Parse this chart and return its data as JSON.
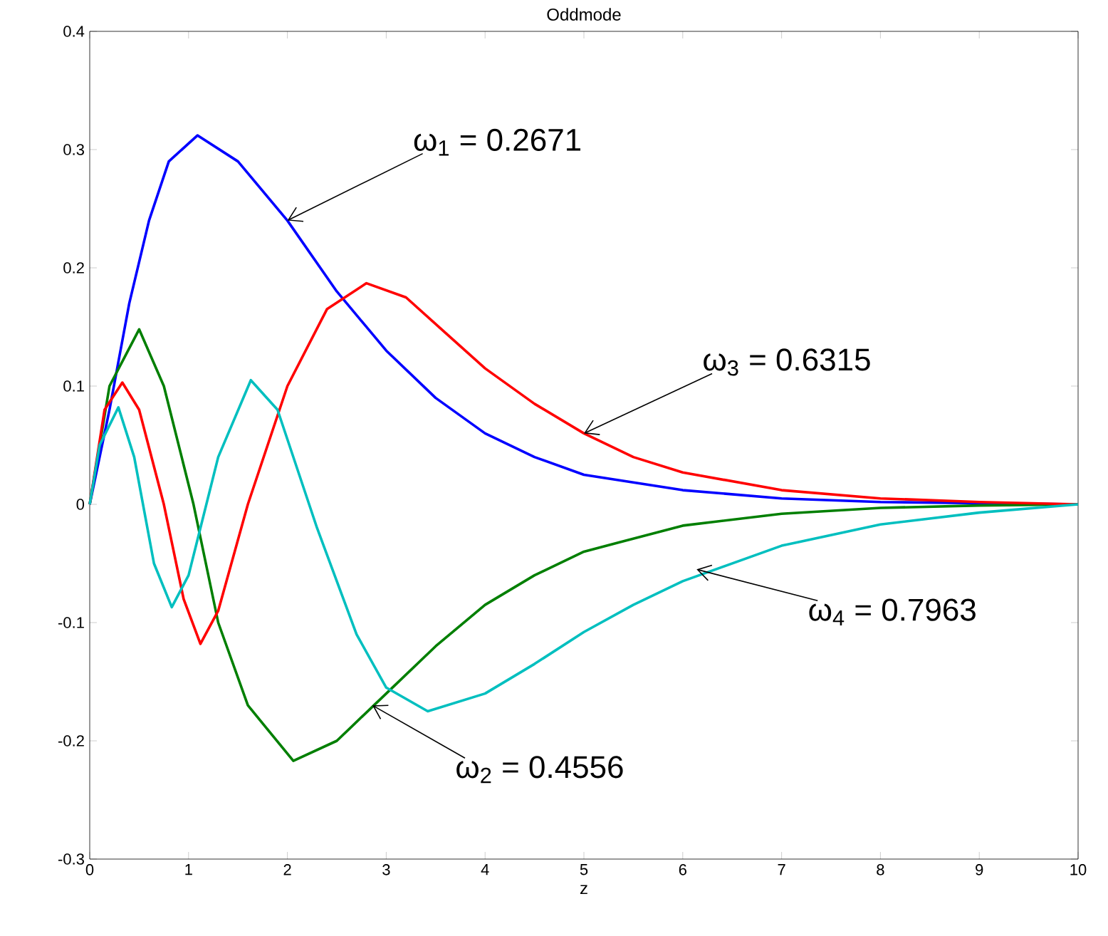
{
  "chart_data": {
    "type": "line",
    "title": "Oddmode",
    "xlabel": "z",
    "xlim": [
      0,
      10
    ],
    "ylim": [
      -0.3,
      0.4
    ],
    "xticks": [
      0,
      1,
      2,
      3,
      4,
      5,
      6,
      7,
      8,
      9,
      10
    ],
    "yticks": [
      -0.3,
      -0.2,
      -0.1,
      0,
      0.1,
      0.2,
      0.3,
      0.4
    ],
    "series": [
      {
        "color": "#0000ff",
        "x": [
          0,
          0.2,
          0.4,
          0.6,
          0.8,
          1.09,
          1.5,
          2,
          2.5,
          3,
          3.5,
          4,
          4.5,
          5,
          6,
          7,
          8,
          10
        ],
        "values": [
          0,
          0.08,
          0.17,
          0.24,
          0.29,
          0.312,
          0.29,
          0.24,
          0.18,
          0.13,
          0.09,
          0.06,
          0.04,
          0.025,
          0.012,
          0.005,
          0.002,
          0
        ]
      },
      {
        "color": "#007f00",
        "x": [
          0,
          0.2,
          0.5,
          0.75,
          1.05,
          1.3,
          1.6,
          2.06,
          2.5,
          3,
          3.5,
          4,
          4.5,
          5,
          6,
          7,
          8,
          9,
          10
        ],
        "values": [
          0,
          0.1,
          0.148,
          0.1,
          0,
          -0.1,
          -0.17,
          -0.217,
          -0.2,
          -0.16,
          -0.12,
          -0.085,
          -0.06,
          -0.04,
          -0.018,
          -0.008,
          -0.003,
          -0.001,
          0
        ]
      },
      {
        "color": "#ff0000",
        "x": [
          0,
          0.15,
          0.33,
          0.5,
          0.75,
          0.95,
          1.12,
          1.3,
          1.6,
          2,
          2.4,
          2.8,
          3.2,
          3.6,
          4,
          4.5,
          5,
          5.5,
          6,
          7,
          8,
          9,
          10
        ],
        "values": [
          0,
          0.08,
          0.103,
          0.08,
          0,
          -0.08,
          -0.118,
          -0.09,
          0,
          0.1,
          0.165,
          0.187,
          0.175,
          0.145,
          0.115,
          0.085,
          0.06,
          0.04,
          0.027,
          0.012,
          0.005,
          0.002,
          0
        ]
      },
      {
        "color": "#00bfbf",
        "x": [
          0,
          0.1,
          0.29,
          0.45,
          0.65,
          0.83,
          1.0,
          1.3,
          1.63,
          1.9,
          2.3,
          2.7,
          3.0,
          3.42,
          4,
          4.5,
          5,
          5.5,
          6,
          7,
          8,
          9,
          10
        ],
        "values": [
          0,
          0.05,
          0.082,
          0.04,
          -0.05,
          -0.087,
          -0.06,
          0.04,
          0.105,
          0.08,
          -0.02,
          -0.11,
          -0.155,
          -0.175,
          -0.16,
          -0.135,
          -0.108,
          -0.085,
          -0.065,
          -0.035,
          -0.017,
          -0.007,
          0
        ]
      }
    ],
    "annotations": [
      {
        "text": "ω$_{1}$ = 0.2671",
        "x": 2,
        "y": 0.24
      },
      {
        "text": "ω$_{3}$ = 0.6315",
        "x": 5,
        "y": 0.06
      },
      {
        "text": "ω$_{4}$ = 0.7963",
        "x": 6.14,
        "y": -0.055
      },
      {
        "text": "ω$_{2}$ = 0.4556",
        "x": 2.86,
        "y": -0.17
      }
    ]
  }
}
